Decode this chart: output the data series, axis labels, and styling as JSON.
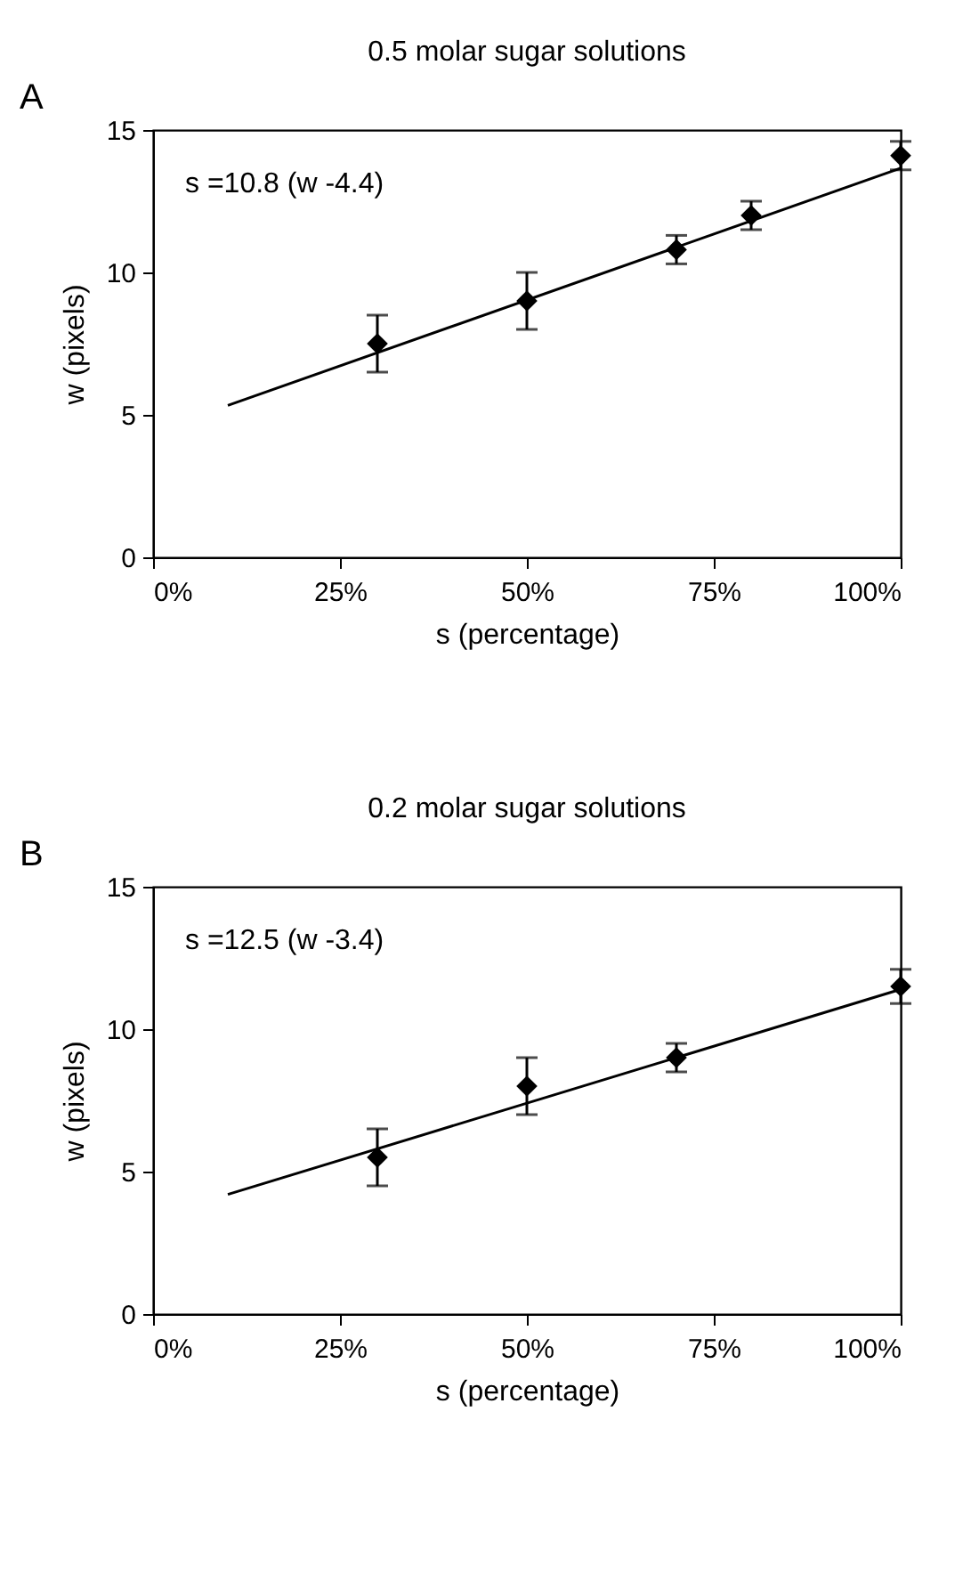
{
  "chart_data": [
    {
      "type": "scatter",
      "title": "0.5 molar sugar solutions",
      "xlabel": "s (percentage)",
      "ylabel": "w (pixels)",
      "annotations": [
        "A",
        "s =10.8 (w -4.4)"
      ],
      "xlim": [
        0,
        100
      ],
      "xticks": [
        {
          "value": 0,
          "label": "0%"
        },
        {
          "value": 25,
          "label": "25%"
        },
        {
          "value": 50,
          "label": "50%"
        },
        {
          "value": 75,
          "label": "75%"
        },
        {
          "value": 100,
          "label": "100%"
        }
      ],
      "ylim": [
        0,
        15
      ],
      "yticks": [
        0,
        5,
        10,
        15
      ],
      "grid": false,
      "series": [
        {
          "type": "line",
          "color": "#000000",
          "x": [
            10,
            100
          ],
          "values": [
            5.33,
            13.66
          ],
          "line_style": "solid"
        },
        {
          "type": "scatter",
          "color": "#000000",
          "marker": "diamond",
          "x": [
            30,
            50,
            70,
            80,
            100
          ],
          "values": [
            7.5,
            9.0,
            10.8,
            12.0,
            14.1
          ],
          "errors": [
            1.0,
            1.0,
            0.5,
            0.5,
            0.5
          ]
        }
      ]
    },
    {
      "type": "scatter",
      "title": "0.2 molar sugar solutions",
      "xlabel": "s (percentage)",
      "ylabel": "w (pixels)",
      "annotations": [
        "B",
        "s =12.5 (w -3.4)"
      ],
      "xlim": [
        0,
        100
      ],
      "xticks": [
        {
          "value": 0,
          "label": "0%"
        },
        {
          "value": 25,
          "label": "25%"
        },
        {
          "value": 50,
          "label": "50%"
        },
        {
          "value": 75,
          "label": "75%"
        },
        {
          "value": 100,
          "label": "100%"
        }
      ],
      "ylim": [
        0,
        15
      ],
      "yticks": [
        0,
        5,
        10,
        15
      ],
      "grid": false,
      "series": [
        {
          "type": "line",
          "color": "#000000",
          "x": [
            10,
            100
          ],
          "values": [
            4.2,
            11.4
          ],
          "line_style": "solid"
        },
        {
          "type": "scatter",
          "color": "#000000",
          "marker": "diamond",
          "x": [
            30,
            50,
            70,
            100
          ],
          "values": [
            5.5,
            8.0,
            9.0,
            11.5
          ],
          "errors": [
            1.0,
            1.0,
            0.5,
            0.6
          ]
        }
      ]
    }
  ]
}
